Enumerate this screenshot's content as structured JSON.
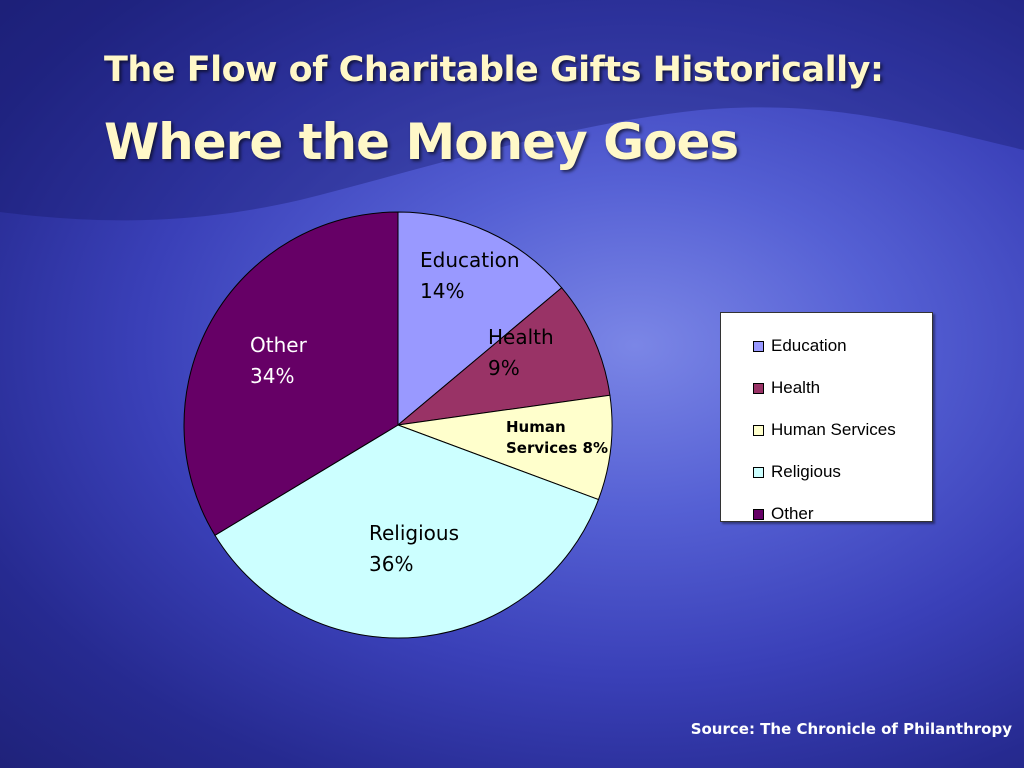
{
  "slide": {
    "title_line1": "The Flow of Charitable Gifts Historically:",
    "title_line2": "Where the Money Goes",
    "source": "Source:  The Chronicle of Philanthropy"
  },
  "chart_data": {
    "type": "pie",
    "categories": [
      "Education",
      "Health",
      "Human Services",
      "Religious",
      "Other"
    ],
    "values": [
      14,
      9,
      8,
      36,
      34
    ],
    "unit": "%",
    "colors": [
      "#9999ff",
      "#993366",
      "#ffffcc",
      "#ccffff",
      "#660066"
    ],
    "data_labels": [
      {
        "name": "Education",
        "value": "14%"
      },
      {
        "name": "Health",
        "value": "9%"
      },
      {
        "name": "Human",
        "value": "Services 8%"
      },
      {
        "name": "Religious",
        "value": "36%"
      },
      {
        "name": "Other",
        "value": "34%"
      }
    ],
    "legend": {
      "position": "right",
      "entries": [
        "Education",
        "Health",
        "Human Services",
        "Religious",
        "Other"
      ]
    }
  }
}
